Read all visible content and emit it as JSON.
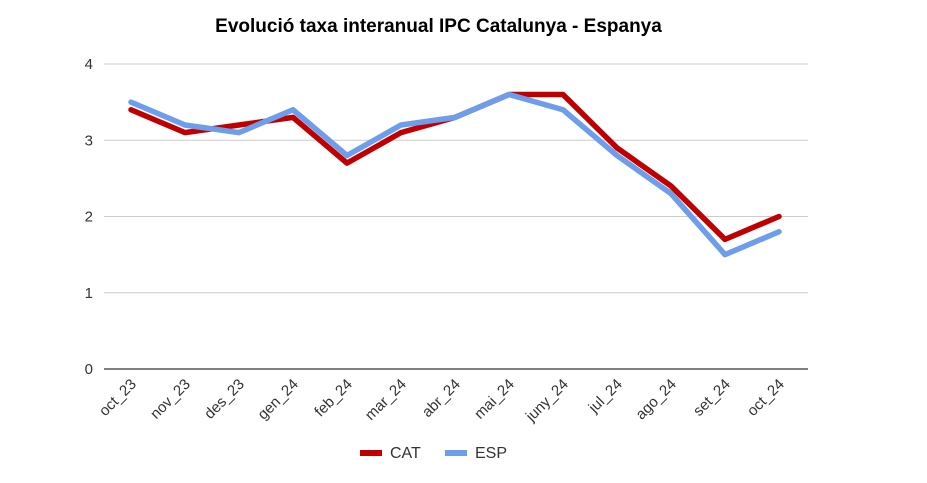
{
  "chart_data": {
    "type": "line",
    "title": "Evolució taxa interanual IPC Catalunya - Espanya",
    "xlabel": "",
    "ylabel": "",
    "categories": [
      "oct_23",
      "nov_23",
      "des_23",
      "gen_24",
      "feb_24",
      "mar_24",
      "abr_24",
      "mai_24",
      "juny_24",
      "jul_24",
      "ago_24",
      "set_24",
      "oct_24"
    ],
    "ylim": [
      0,
      4
    ],
    "yticks": [
      "0",
      "1",
      "2",
      "3",
      "4"
    ],
    "grid": "horizontal",
    "legend_position": "bottom",
    "series": [
      {
        "name": "CAT",
        "color": "#c00000",
        "values": [
          3.4,
          3.1,
          3.2,
          3.3,
          2.7,
          3.1,
          3.3,
          3.6,
          3.6,
          2.9,
          2.4,
          1.7,
          2.0
        ]
      },
      {
        "name": "ESP",
        "color": "#6d9eeb",
        "values": [
          3.5,
          3.2,
          3.1,
          3.4,
          2.8,
          3.2,
          3.3,
          3.6,
          3.4,
          2.8,
          2.3,
          1.5,
          1.8
        ]
      }
    ]
  }
}
